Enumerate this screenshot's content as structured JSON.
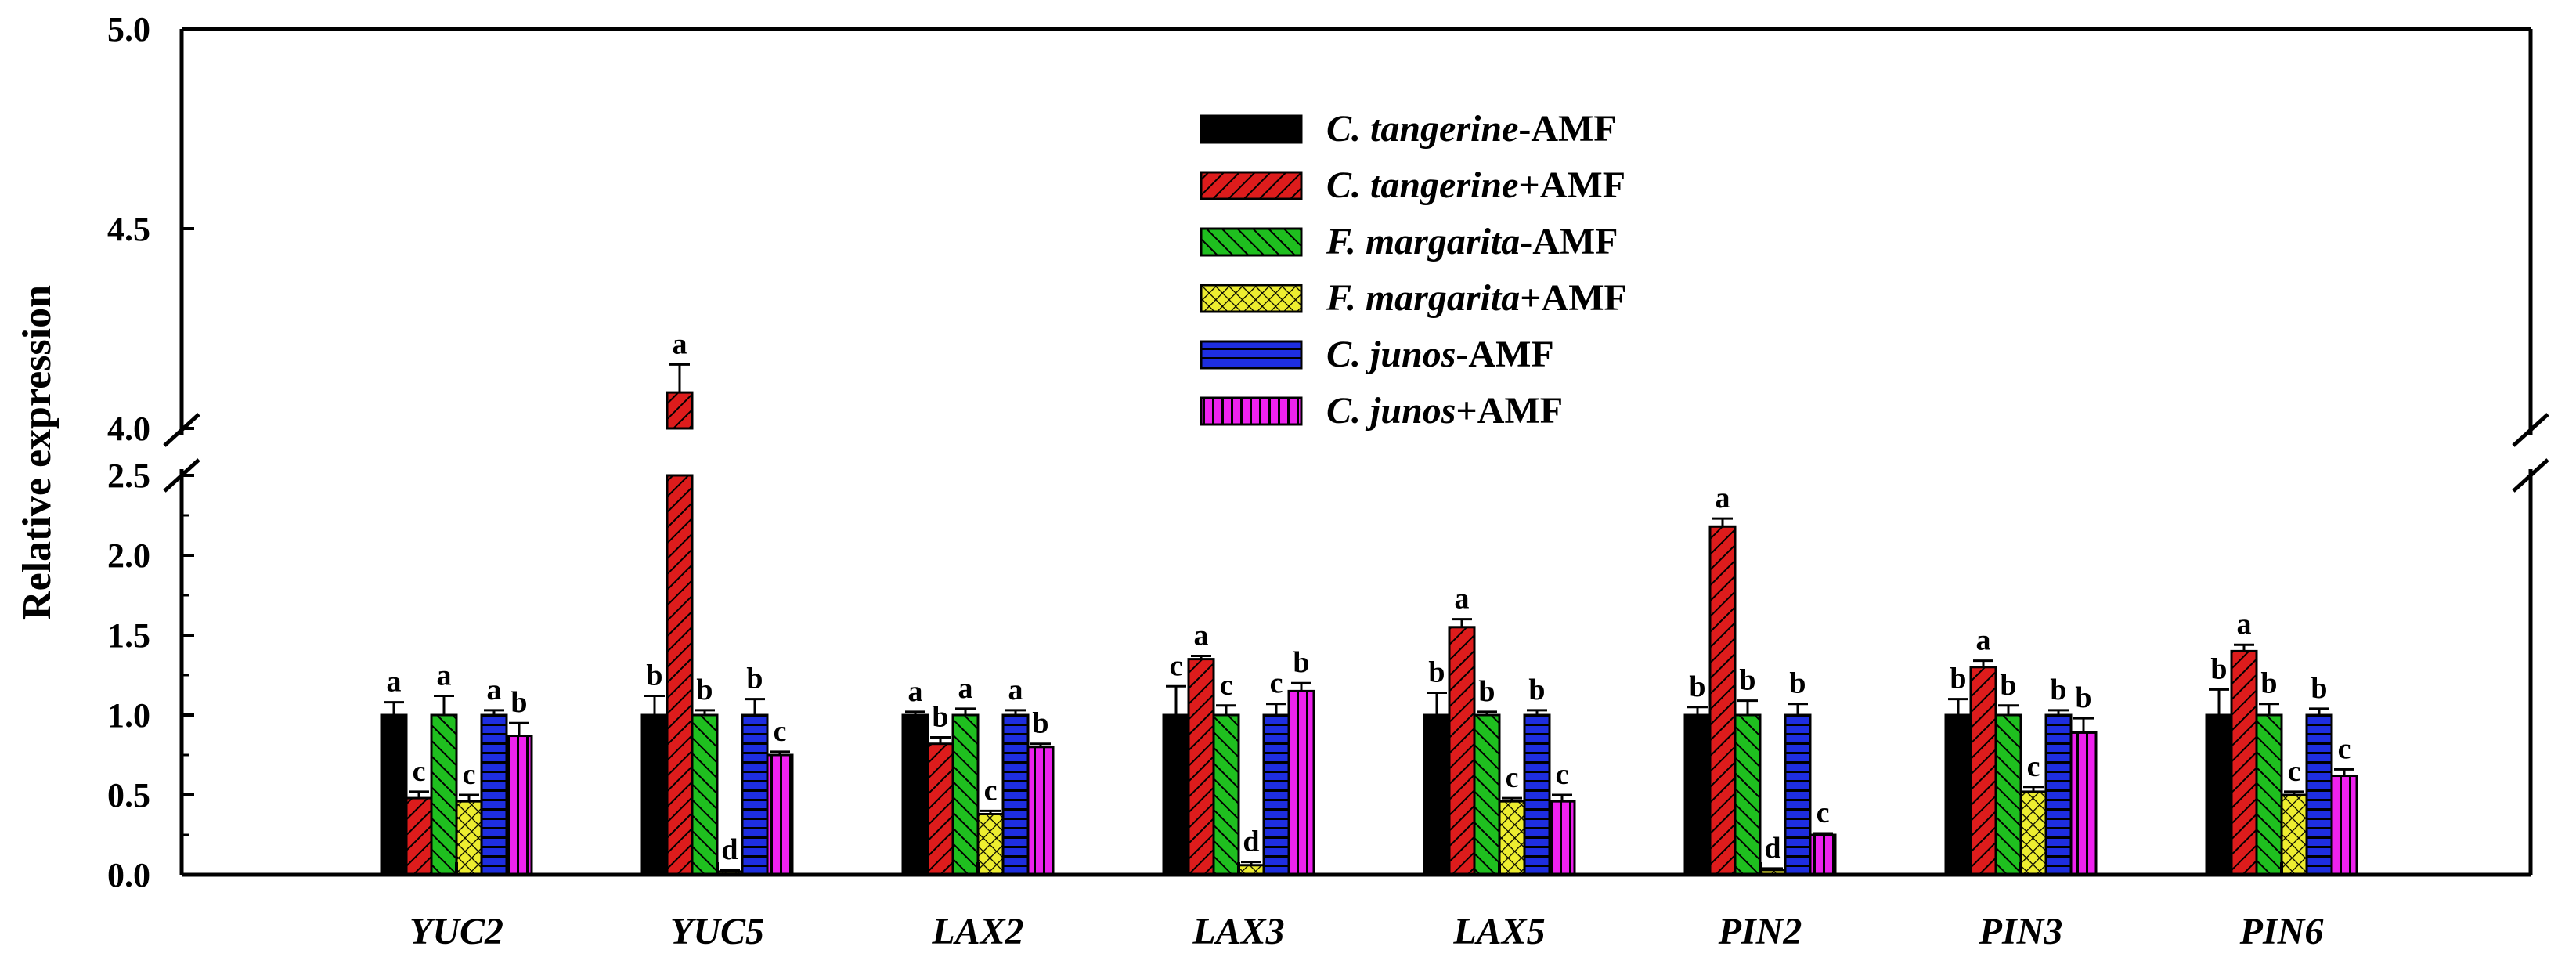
{
  "chart_data": {
    "type": "bar",
    "title": "",
    "xlabel": "",
    "ylabel": "Relative expression",
    "axis_break": {
      "lower_range": [
        0,
        2.5
      ],
      "upper_range": [
        4.0,
        5.0
      ]
    },
    "y_ticks": [
      "0.0",
      "0.5",
      "1.0",
      "1.5",
      "2.0",
      "2.5",
      "4.0",
      "4.5",
      "5.0"
    ],
    "grid": false,
    "legend_position": "top-center",
    "categories": [
      "YUC2",
      "YUC5",
      "LAX2",
      "LAX3",
      "LAX5",
      "PIN2",
      "PIN3",
      "PIN6"
    ],
    "series": [
      {
        "name": "C. tangerine-AMF",
        "legend": {
          "italic": "C. tangerine",
          "rest": "-AMF"
        },
        "color": "#000000",
        "pattern": "solid",
        "values": [
          1.0,
          1.0,
          1.0,
          1.0,
          1.0,
          1.0,
          1.0,
          1.0
        ],
        "errors": [
          0.08,
          0.12,
          0.02,
          0.18,
          0.14,
          0.05,
          0.1,
          0.16
        ],
        "letters": [
          "a",
          "b",
          "a",
          "c",
          "b",
          "b",
          "b",
          "b"
        ]
      },
      {
        "name": "C. tangerine+AMF",
        "legend": {
          "italic": "C. tangerine",
          "rest": "+AMF"
        },
        "color": "#dd1c1c",
        "pattern": "diag",
        "values": [
          0.48,
          4.09,
          0.82,
          1.35,
          1.55,
          2.18,
          1.3,
          1.4
        ],
        "errors": [
          0.04,
          0.07,
          0.04,
          0.02,
          0.05,
          0.05,
          0.04,
          0.04
        ],
        "letters": [
          "c",
          "a",
          "b",
          "a",
          "a",
          "a",
          "a",
          "a"
        ]
      },
      {
        "name": "F. margarita-AMF",
        "legend": {
          "italic": "F. margarita",
          "rest": "-AMF"
        },
        "color": "#1fbf1f",
        "pattern": "diag-back",
        "values": [
          1.0,
          1.0,
          1.0,
          1.0,
          1.0,
          1.0,
          1.0,
          1.0
        ],
        "errors": [
          0.12,
          0.03,
          0.04,
          0.06,
          0.02,
          0.09,
          0.06,
          0.07
        ],
        "letters": [
          "a",
          "b",
          "a",
          "c",
          "b",
          "b",
          "b",
          "b"
        ]
      },
      {
        "name": "F. margarita+AMF",
        "legend": {
          "italic": "F. margarita",
          "rest": "+AMF"
        },
        "color": "#eded30",
        "pattern": "cross",
        "values": [
          0.46,
          0.02,
          0.38,
          0.06,
          0.46,
          0.03,
          0.52,
          0.5
        ],
        "errors": [
          0.04,
          0.01,
          0.02,
          0.02,
          0.02,
          0.01,
          0.03,
          0.02
        ],
        "letters": [
          "c",
          "d",
          "c",
          "d",
          "c",
          "d",
          "c",
          "c"
        ]
      },
      {
        "name": "C. junos-AMF",
        "legend": {
          "italic": "C. junos",
          "rest": "-AMF"
        },
        "color": "#1e2ee0",
        "pattern": "horiz",
        "values": [
          1.0,
          1.0,
          1.0,
          1.0,
          1.0,
          1.0,
          1.0,
          1.0
        ],
        "errors": [
          0.03,
          0.1,
          0.03,
          0.07,
          0.03,
          0.07,
          0.03,
          0.04
        ],
        "letters": [
          "a",
          "b",
          "a",
          "c",
          "b",
          "b",
          "b",
          "b"
        ]
      },
      {
        "name": "C. junos+AMF",
        "legend": {
          "italic": "C. junos",
          "rest": "+AMF"
        },
        "color": "#ee22ee",
        "pattern": "vert",
        "values": [
          0.87,
          0.75,
          0.8,
          1.15,
          0.46,
          0.25,
          0.89,
          0.62
        ],
        "errors": [
          0.08,
          0.02,
          0.02,
          0.05,
          0.04,
          0.01,
          0.09,
          0.04
        ],
        "letters": [
          "b",
          "c",
          "b",
          "b",
          "c",
          "c",
          "b",
          "c"
        ]
      }
    ]
  }
}
